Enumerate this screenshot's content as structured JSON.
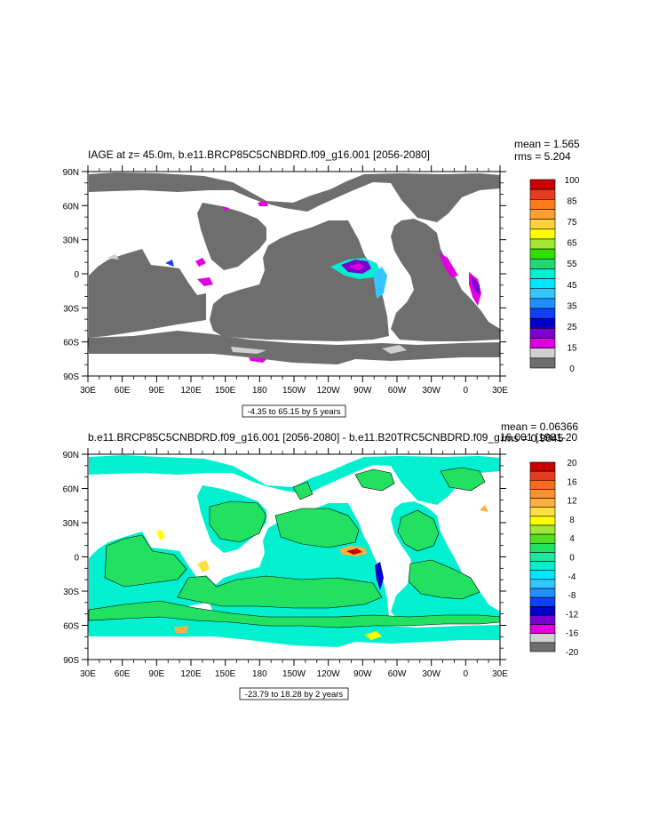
{
  "chart_data": [
    {
      "type": "heatmap",
      "title": "IAGE at z=  45.0m, b.e11.BRCP85C5CNBDRD.f09_g16.001 [2056-2080]",
      "stats": {
        "mean": "mean = 1.565",
        "rms": "rms = 5.204"
      },
      "x_ticks": [
        "30E",
        "60E",
        "90E",
        "120E",
        "150E",
        "180",
        "150W",
        "120W",
        "90W",
        "60W",
        "30W",
        "0",
        "30E"
      ],
      "y_ticks": [
        "90N",
        "60N",
        "30N",
        "0",
        "30S",
        "60S",
        "90S"
      ],
      "ylim": [
        -90,
        90
      ],
      "contour_note": "-4.35 to 65.15 by 5 years",
      "colorbar": {
        "labels": [
          "100",
          "85",
          "75",
          "65",
          "55",
          "45",
          "35",
          "25",
          "15",
          "0"
        ],
        "colors": [
          "#c80000",
          "#e63b1e",
          "#ff7a1a",
          "#ffa030",
          "#ffd040",
          "#ffff00",
          "#a0e632",
          "#2ee000",
          "#22d870",
          "#00f0d0",
          "#00e8ff",
          "#34c6ff",
          "#1e90ff",
          "#1040ff",
          "#0000c8",
          "#7a00d0",
          "#e000e0",
          "#d0d0d0",
          "#6e6e6e"
        ]
      }
    },
    {
      "type": "heatmap",
      "title": "b.e11.BRCP85C5CNBDRD.f09_g16.001 [2056-2080] - b.e11.B20TRC5CNBDRD.f09_g16.001 [1981-20",
      "stats": {
        "mean": "mean = 0.06366",
        "rms": "rms = 0.9045"
      },
      "x_ticks": [
        "30E",
        "60E",
        "90E",
        "120E",
        "150E",
        "180",
        "150W",
        "120W",
        "90W",
        "60W",
        "30W",
        "0",
        "30E"
      ],
      "y_ticks": [
        "90N",
        "60N",
        "30N",
        "0",
        "30S",
        "60S",
        "90S"
      ],
      "ylim": [
        -90,
        90
      ],
      "contour_note": "-23.79 to 18.28 by 2 years",
      "colorbar": {
        "labels": [
          "20",
          "16",
          "12",
          "8",
          "4",
          "0",
          "-4",
          "-8",
          "-12",
          "-16",
          "-20"
        ],
        "colors": [
          "#c80000",
          "#e63b1e",
          "#ff6a1a",
          "#ff9030",
          "#ffb040",
          "#ffe040",
          "#ffff00",
          "#a0e632",
          "#50e020",
          "#22e060",
          "#20e8a0",
          "#00f0d0",
          "#00e8ff",
          "#34c6ff",
          "#1e90ff",
          "#1040ff",
          "#0000c8",
          "#7a00d0",
          "#e000e0",
          "#d0d0d0",
          "#6e6e6e"
        ]
      }
    }
  ]
}
